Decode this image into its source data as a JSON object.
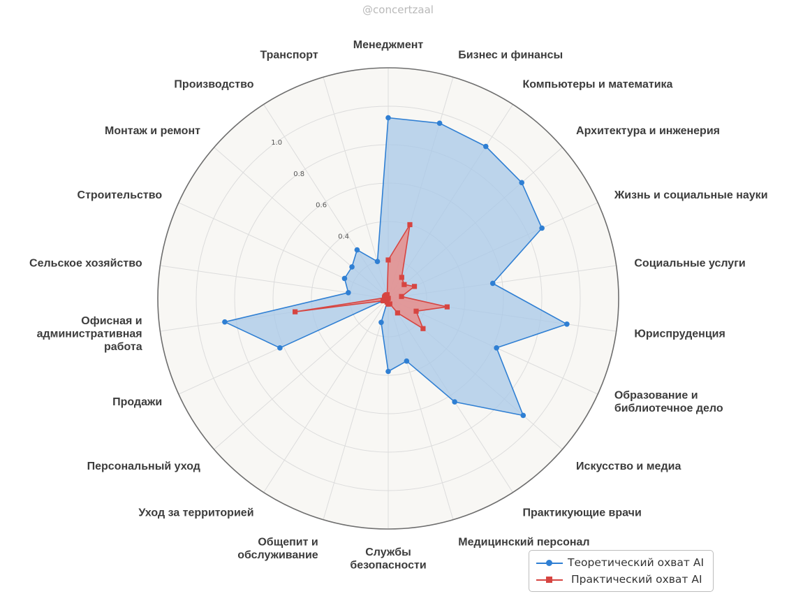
{
  "watermark": "@concertzaal",
  "chart_data": {
    "type": "radar",
    "categories": [
      "Менеджмент",
      "Бизнес и финансы",
      "Компьютеры и математика",
      "Архитектура и инженерия",
      "Жизнь и социальные науки",
      "Социальные услуги",
      "Юриспруденция",
      "Образование и\nбиблиотечное дело",
      "Искусство и медиа",
      "Практикующие врачи",
      "Медицинский персонал",
      "Службы\nбезопасности",
      "Общепит и\nобслуживание",
      "Уход за территорией",
      "Персональный уход",
      "Продажи",
      "Офисная и\nадминистративная\nработа",
      "Сельское хозяйство",
      "Строительство",
      "Монтаж и ремонт",
      "Производство",
      "Транспорт"
    ],
    "series": [
      {
        "name": "Теоретический охват AI",
        "color": "#2f7fd3",
        "fill": "#a8c8e8",
        "marker": "circle",
        "values": [
          0.94,
          0.95,
          0.94,
          0.92,
          0.88,
          0.55,
          0.94,
          0.62,
          0.93,
          0.64,
          0.34,
          0.38,
          0.13,
          0.0,
          0.0,
          0.62,
          0.86,
          0.21,
          0.25,
          0.25,
          0.3,
          0.2
        ]
      },
      {
        "name": "Практический охват AI",
        "color": "#d64541",
        "fill": "#e88e8c",
        "marker": "square",
        "values": [
          0.2,
          0.4,
          0.13,
          0.11,
          0.15,
          0.07,
          0.31,
          0.16,
          0.24,
          0.09,
          0.03,
          0.03,
          0.02,
          0.0,
          0.0,
          0.03,
          0.49,
          0.02,
          0.02,
          0.02,
          0.02,
          0.02
        ]
      }
    ],
    "radial_ticks": [
      {
        "value": 0.4,
        "label": "0.4"
      },
      {
        "value": 0.6,
        "label": "0.6"
      },
      {
        "value": 0.8,
        "label": "0.8"
      },
      {
        "value": 1.0,
        "label": "1.0"
      }
    ],
    "rlim": [
      0,
      1.2
    ],
    "grid": true,
    "legend_position": "bottom-right"
  }
}
